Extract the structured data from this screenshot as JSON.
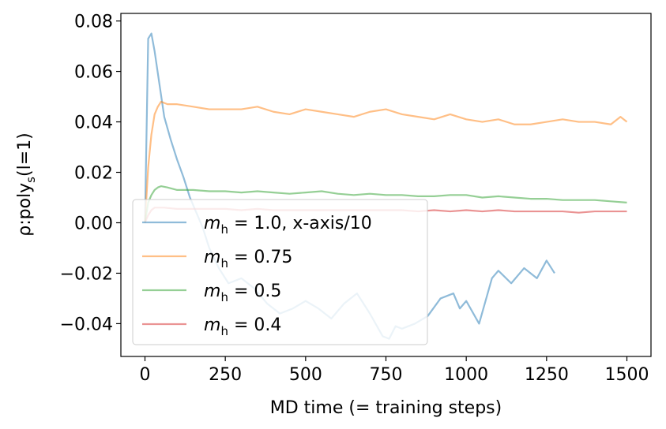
{
  "chart_data": {
    "type": "line",
    "xlabel": "MD time (= training steps)",
    "ylabel_main": "ρ:poly",
    "ylabel_sub": "s",
    "ylabel_tail": "(l=1)",
    "xlim": [
      -75,
      1575
    ],
    "ylim": [
      -0.053,
      0.083
    ],
    "xticks": [
      0,
      250,
      500,
      750,
      1000,
      1250,
      1500
    ],
    "xtick_labels": [
      "0",
      "250",
      "500",
      "750",
      "1000",
      "1250",
      "1500"
    ],
    "yticks": [
      -0.04,
      -0.02,
      0.0,
      0.02,
      0.04,
      0.06,
      0.08
    ],
    "ytick_labels": [
      "−0.04",
      "−0.02",
      "0.00",
      "0.02",
      "0.04",
      "0.06",
      "0.08"
    ],
    "legend_position": "lower-left",
    "series": [
      {
        "name_var": "m",
        "name_sub": "h",
        "name_rest": " = 1.0, x-axis/10",
        "color": "#1f77b4",
        "x": [
          0,
          10,
          20,
          30,
          45,
          60,
          80,
          100,
          120,
          140,
          160,
          180,
          200,
          230,
          260,
          300,
          340,
          380,
          420,
          460,
          500,
          540,
          580,
          620,
          660,
          700,
          740,
          760,
          780,
          800,
          840,
          880,
          920,
          960,
          980,
          1000,
          1040,
          1080,
          1100,
          1140,
          1180,
          1220,
          1250,
          1275
        ],
        "y": [
          0.0,
          0.073,
          0.075,
          0.068,
          0.055,
          0.042,
          0.033,
          0.025,
          0.018,
          0.01,
          0.004,
          -0.002,
          -0.01,
          -0.018,
          -0.024,
          -0.022,
          -0.026,
          -0.032,
          -0.036,
          -0.034,
          -0.031,
          -0.034,
          -0.038,
          -0.032,
          -0.028,
          -0.036,
          -0.045,
          -0.046,
          -0.041,
          -0.042,
          -0.04,
          -0.037,
          -0.03,
          -0.028,
          -0.034,
          -0.031,
          -0.04,
          -0.022,
          -0.019,
          -0.024,
          -0.018,
          -0.022,
          -0.015,
          -0.02
        ]
      },
      {
        "name_var": "m",
        "name_sub": "h",
        "name_rest": " = 0.75",
        "color": "#ff7f0e",
        "x": [
          0,
          10,
          20,
          30,
          40,
          50,
          70,
          100,
          150,
          200,
          250,
          300,
          350,
          400,
          450,
          500,
          550,
          600,
          650,
          700,
          750,
          800,
          850,
          900,
          950,
          1000,
          1050,
          1100,
          1150,
          1200,
          1250,
          1300,
          1350,
          1400,
          1450,
          1480,
          1500
        ],
        "y": [
          0.0,
          0.022,
          0.035,
          0.043,
          0.046,
          0.048,
          0.047,
          0.047,
          0.046,
          0.045,
          0.045,
          0.045,
          0.046,
          0.044,
          0.043,
          0.045,
          0.044,
          0.043,
          0.042,
          0.044,
          0.045,
          0.043,
          0.042,
          0.041,
          0.043,
          0.041,
          0.04,
          0.041,
          0.039,
          0.039,
          0.04,
          0.041,
          0.04,
          0.04,
          0.039,
          0.042,
          0.04
        ]
      },
      {
        "name_var": "m",
        "name_sub": "h",
        "name_rest": " = 0.5",
        "color": "#2ca02c",
        "x": [
          0,
          10,
          20,
          30,
          40,
          50,
          70,
          100,
          150,
          200,
          250,
          300,
          350,
          400,
          450,
          500,
          550,
          600,
          650,
          700,
          750,
          800,
          850,
          900,
          950,
          1000,
          1050,
          1100,
          1150,
          1200,
          1250,
          1300,
          1350,
          1400,
          1450,
          1500
        ],
        "y": [
          0.0,
          0.008,
          0.011,
          0.013,
          0.014,
          0.0145,
          0.014,
          0.013,
          0.013,
          0.0125,
          0.0125,
          0.012,
          0.0125,
          0.012,
          0.0115,
          0.012,
          0.0125,
          0.0115,
          0.011,
          0.0115,
          0.011,
          0.011,
          0.0105,
          0.0105,
          0.011,
          0.011,
          0.01,
          0.0105,
          0.01,
          0.0095,
          0.0095,
          0.009,
          0.009,
          0.009,
          0.0085,
          0.008
        ]
      },
      {
        "name_var": "m",
        "name_sub": "h",
        "name_rest": " = 0.4",
        "color": "#d62728",
        "x": [
          0,
          10,
          20,
          30,
          40,
          60,
          100,
          150,
          200,
          250,
          300,
          350,
          400,
          450,
          500,
          550,
          600,
          650,
          700,
          750,
          800,
          850,
          900,
          950,
          1000,
          1050,
          1100,
          1150,
          1200,
          1250,
          1300,
          1350,
          1400,
          1450,
          1500
        ],
        "y": [
          0.0,
          0.003,
          0.005,
          0.006,
          0.006,
          0.006,
          0.0055,
          0.0055,
          0.0055,
          0.0055,
          0.005,
          0.0055,
          0.005,
          0.005,
          0.005,
          0.005,
          0.005,
          0.005,
          0.005,
          0.005,
          0.005,
          0.0045,
          0.005,
          0.0045,
          0.005,
          0.0045,
          0.005,
          0.0045,
          0.0045,
          0.0045,
          0.0045,
          0.004,
          0.0045,
          0.0045,
          0.0045
        ]
      }
    ]
  }
}
